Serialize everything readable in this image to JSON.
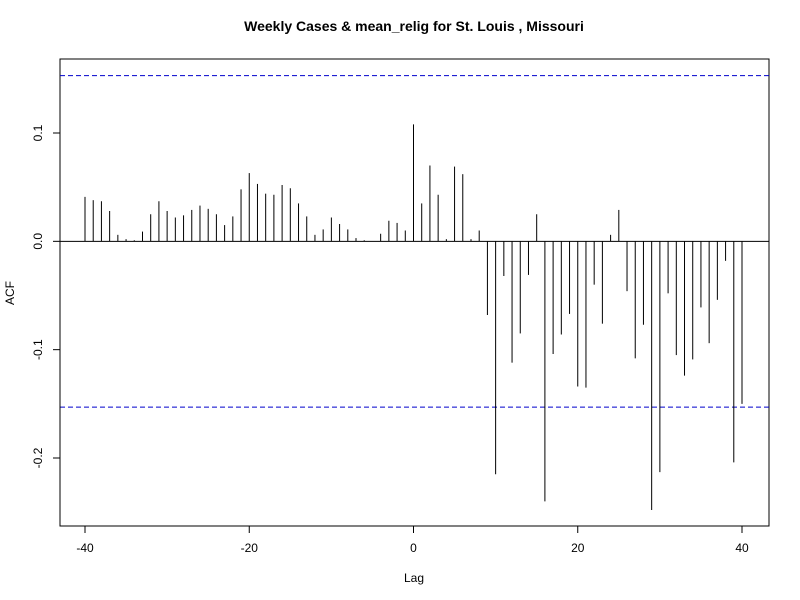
{
  "chart_data": {
    "type": "bar",
    "title": "Weekly Cases & mean_relig for St. Louis , Missouri",
    "xlabel": "Lag",
    "ylabel": "ACF",
    "xlim": [
      -40,
      40
    ],
    "ylim": [
      -0.26,
      0.17
    ],
    "x_ticks": [
      -40,
      -20,
      0,
      20,
      40
    ],
    "y_ticks": [
      -0.2,
      -0.1,
      0.0,
      0.1
    ],
    "confidence_bound": 0.153,
    "zero_line": true,
    "colors": {
      "bars": "#000000",
      "confidence": "#0000cc",
      "frame": "#000000"
    },
    "lags": [
      -40,
      -39,
      -38,
      -37,
      -36,
      -35,
      -34,
      -33,
      -32,
      -31,
      -30,
      -29,
      -28,
      -27,
      -26,
      -25,
      -24,
      -23,
      -22,
      -21,
      -20,
      -19,
      -18,
      -17,
      -16,
      -15,
      -14,
      -13,
      -12,
      -11,
      -10,
      -9,
      -8,
      -7,
      -6,
      -5,
      -4,
      -3,
      -2,
      -1,
      0,
      1,
      2,
      3,
      4,
      5,
      6,
      7,
      8,
      9,
      10,
      11,
      12,
      13,
      14,
      15,
      16,
      17,
      18,
      19,
      20,
      21,
      22,
      23,
      24,
      25,
      26,
      27,
      28,
      29,
      30,
      31,
      32,
      33,
      34,
      35,
      36,
      37,
      38,
      39,
      40
    ],
    "values": [
      0.041,
      0.038,
      0.037,
      0.028,
      0.006,
      0.002,
      0.001,
      0.009,
      0.025,
      0.037,
      0.028,
      0.022,
      0.024,
      0.029,
      0.033,
      0.03,
      0.025,
      0.015,
      0.023,
      0.048,
      0.063,
      0.053,
      0.044,
      0.043,
      0.052,
      0.049,
      0.035,
      0.023,
      0.006,
      0.011,
      0.022,
      0.016,
      0.011,
      0.003,
      0.001,
      0.0,
      0.007,
      0.019,
      0.017,
      0.01,
      0.108,
      0.035,
      0.07,
      0.043,
      0.002,
      0.069,
      0.062,
      0.002,
      0.01,
      -0.068,
      -0.215,
      -0.032,
      -0.112,
      -0.085,
      -0.031,
      0.025,
      -0.24,
      -0.104,
      -0.086,
      -0.067,
      -0.134,
      -0.135,
      -0.04,
      -0.076,
      0.006,
      0.029,
      -0.046,
      -0.108,
      -0.077,
      -0.248,
      -0.213,
      -0.048,
      -0.105,
      -0.124,
      -0.109,
      -0.061,
      -0.094,
      -0.054,
      -0.018,
      -0.204,
      -0.15
    ]
  }
}
